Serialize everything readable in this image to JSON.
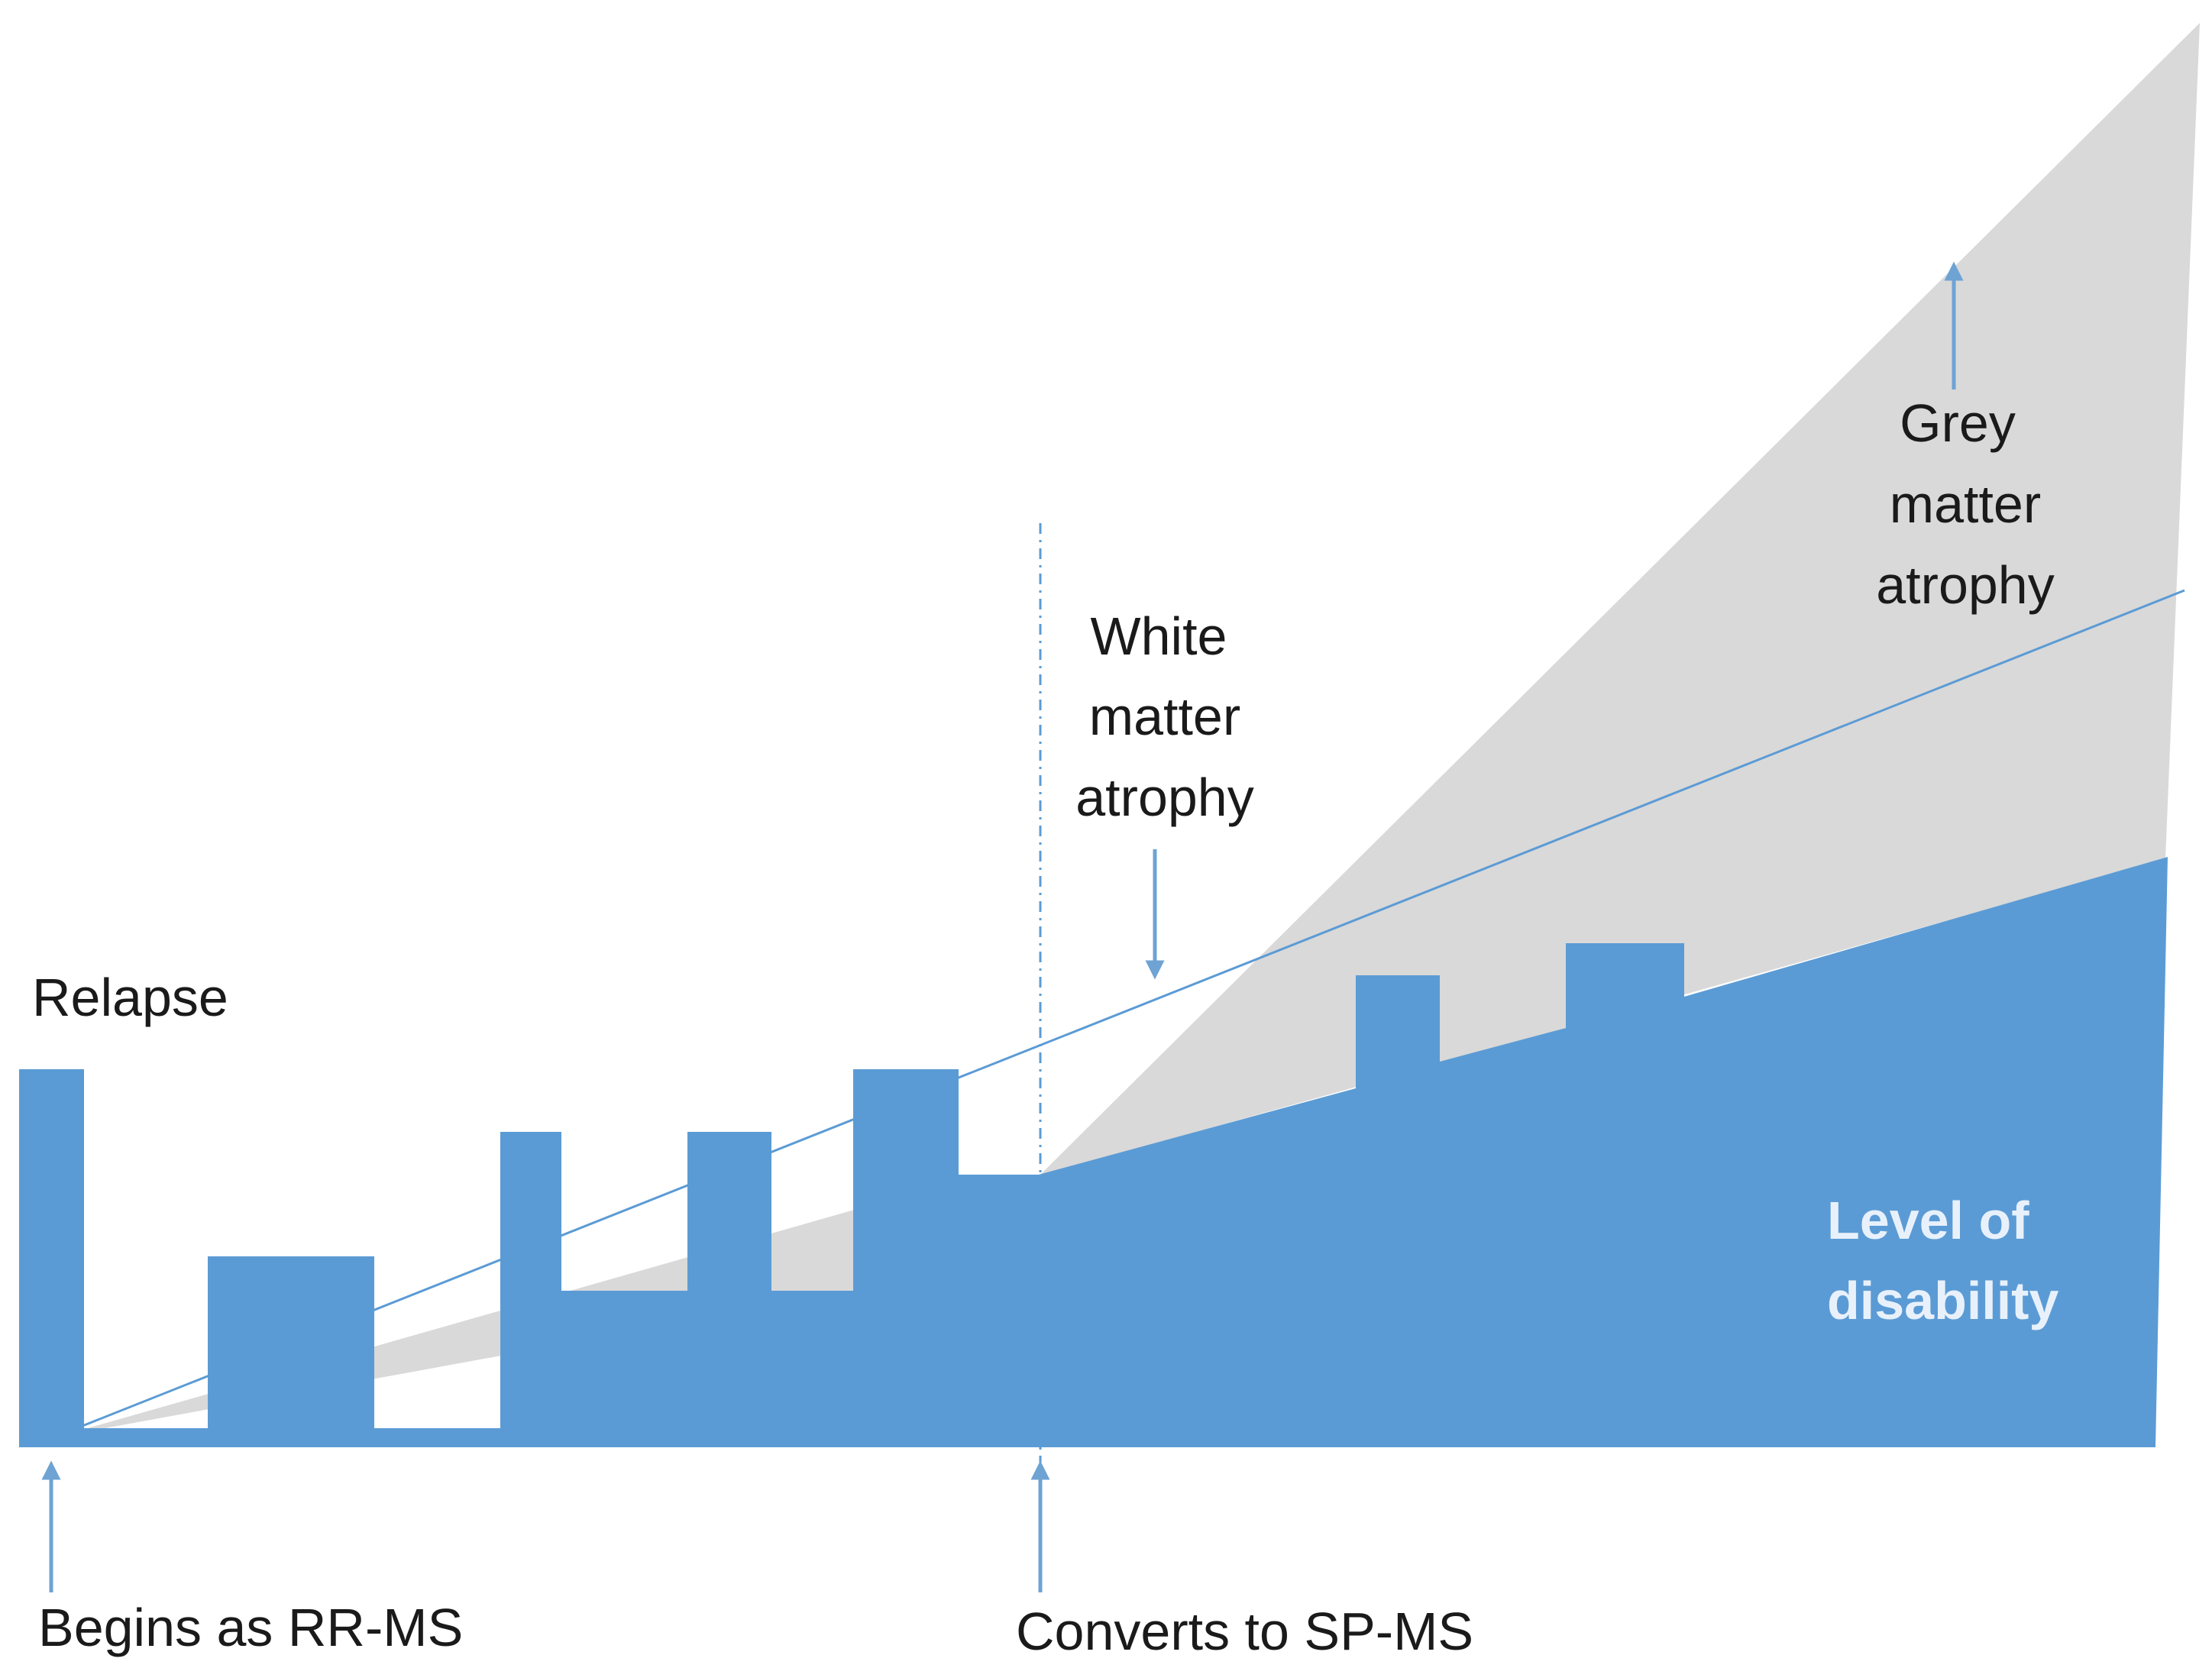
{
  "labels": {
    "relapse": "Relapse",
    "white_matter": [
      "White",
      "matter",
      "atrophy"
    ],
    "grey_matter": [
      "Grey",
      "matter",
      "atrophy"
    ],
    "disability": [
      "Level of",
      "disability"
    ],
    "begins": "Begins as RR-MS",
    "converts": "Converts to SP-MS"
  },
  "colors": {
    "disability_fill": "#5b9bd5",
    "grey_matter_fill": "#d9d9d9",
    "arrow": "#6ea3d4",
    "white_matter_line": "#5b9bd5",
    "divider": "#5b9bd5"
  }
}
